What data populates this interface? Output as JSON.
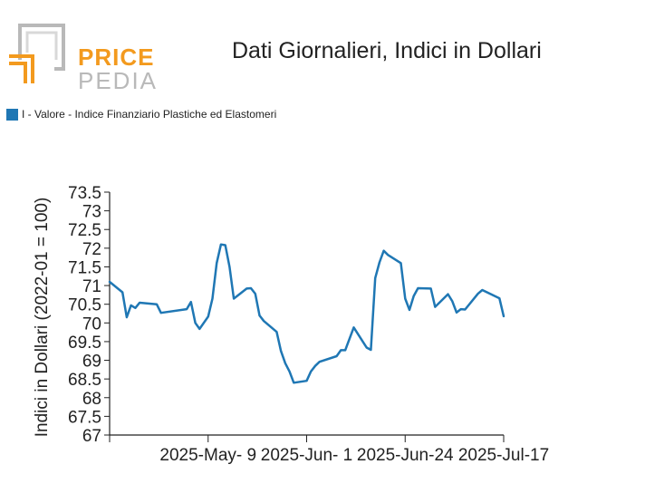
{
  "header": {
    "logo_price": "PRICE",
    "logo_pedia": "PEDIA",
    "title": "Dati Giornalieri, Indici in Dollari"
  },
  "colors": {
    "series": "#1f77b4",
    "logo_orange": "#f39a1e",
    "logo_gray": "#b9b9b9"
  },
  "chart_data": {
    "type": "line",
    "title": "Dati Giornalieri, Indici in Dollari",
    "ylabel": "Indici in Dollari (2022-01 = 100)",
    "xlabel": "",
    "ylim": [
      67,
      73.5
    ],
    "xlim": [
      "2025-04-16",
      "2025-07-17"
    ],
    "yticks": [
      "73.5",
      "73",
      "72.5",
      "72",
      "71.5",
      "71",
      "70.5",
      "70",
      "69.5",
      "69",
      "68.5",
      "68",
      "67.5",
      "67"
    ],
    "xticks": [
      {
        "label": "2025-May- 9",
        "date": "2025-05-09"
      },
      {
        "label": "2025-Jun- 1",
        "date": "2025-06-01"
      },
      {
        "label": "2025-Jun-24",
        "date": "2025-06-24"
      },
      {
        "label": "2025-Jul-17",
        "date": "2025-07-17"
      }
    ],
    "legend_position": "top-left",
    "grid": false,
    "series": [
      {
        "name": "I - Valore - Indice Finanziario Plastiche ed Elastomeri",
        "x": [
          "2025-04-16",
          "2025-04-19",
          "2025-04-20",
          "2025-04-21",
          "2025-04-22",
          "2025-04-23",
          "2025-04-27",
          "2025-04-28",
          "2025-05-04",
          "2025-05-05",
          "2025-05-06",
          "2025-05-07",
          "2025-05-09",
          "2025-05-10",
          "2025-05-11",
          "2025-05-12",
          "2025-05-13",
          "2025-05-14",
          "2025-05-15",
          "2025-05-18",
          "2025-05-19",
          "2025-05-20",
          "2025-05-21",
          "2025-05-22",
          "2025-05-25",
          "2025-05-26",
          "2025-05-27",
          "2025-05-28",
          "2025-05-29",
          "2025-06-01",
          "2025-06-02",
          "2025-06-03",
          "2025-06-04",
          "2025-06-08",
          "2025-06-09",
          "2025-06-10",
          "2025-06-12",
          "2025-06-15",
          "2025-06-16",
          "2025-06-17",
          "2025-06-18",
          "2025-06-19",
          "2025-06-20",
          "2025-06-23",
          "2025-06-24",
          "2025-06-25",
          "2025-06-26",
          "2025-06-27",
          "2025-06-30",
          "2025-07-01",
          "2025-07-04",
          "2025-07-05",
          "2025-07-06",
          "2025-07-07",
          "2025-07-08",
          "2025-07-11",
          "2025-07-12",
          "2025-07-16",
          "2025-07-17"
        ],
        "y": [
          71.1,
          70.82,
          70.15,
          70.47,
          70.4,
          70.54,
          70.5,
          70.27,
          70.37,
          70.56,
          70.0,
          69.84,
          70.17,
          70.65,
          71.6,
          72.1,
          72.08,
          71.5,
          70.65,
          70.92,
          70.93,
          70.78,
          70.2,
          70.05,
          69.76,
          69.25,
          68.92,
          68.7,
          68.4,
          68.45,
          68.7,
          68.85,
          68.96,
          69.11,
          69.27,
          69.27,
          69.88,
          69.34,
          69.28,
          71.2,
          71.62,
          71.93,
          71.82,
          71.6,
          70.65,
          70.35,
          70.72,
          70.93,
          70.92,
          70.43,
          70.77,
          70.58,
          70.28,
          70.37,
          70.36,
          70.78,
          70.88,
          70.66,
          70.18
        ]
      }
    ]
  }
}
